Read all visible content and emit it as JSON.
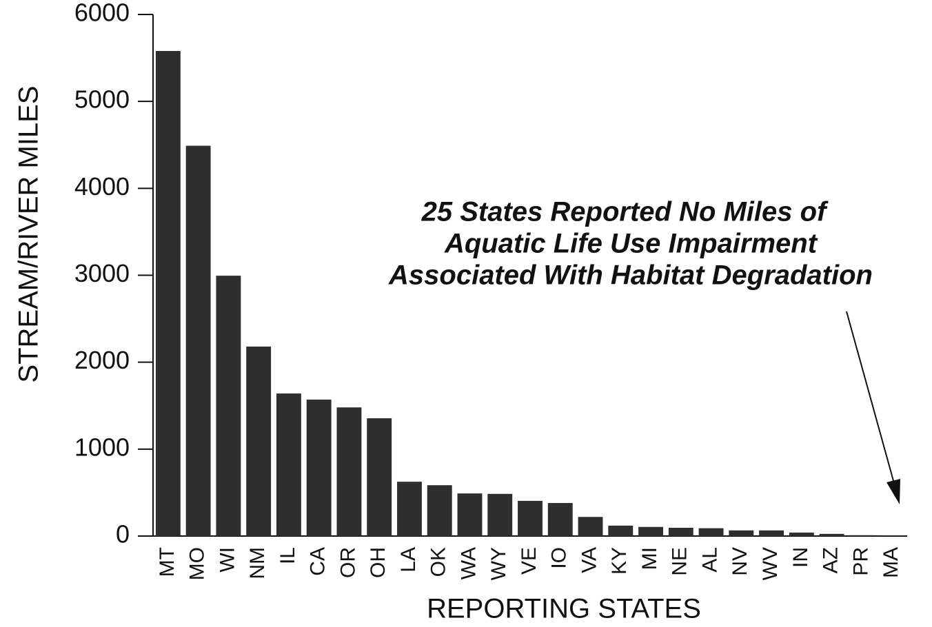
{
  "chart_data": {
    "type": "bar",
    "x_label": "REPORTING STATES",
    "y_label": "STREAM/RIVER MILES",
    "annotation": [
      "25 States Reported No Miles of",
      "Aquatic Life Use Impairment",
      "Associated With Habitat Degradation"
    ],
    "categories": [
      "MT",
      "MO",
      "WI",
      "NM",
      "IL",
      "CA",
      "OR",
      "OH",
      "LA",
      "OK",
      "WA",
      "WY",
      "VE",
      "IO",
      "VA",
      "KY",
      "MI",
      "NE",
      "AL",
      "NV",
      "WV",
      "IN",
      "AZ",
      "PR",
      "MA"
    ],
    "values": [
      5580,
      4490,
      2995,
      2180,
      1640,
      1570,
      1480,
      1355,
      625,
      585,
      490,
      485,
      405,
      380,
      220,
      120,
      105,
      95,
      90,
      65,
      65,
      40,
      25,
      10,
      5
    ],
    "color": "#2e2e2e",
    "ylim": [
      0,
      6000
    ],
    "yticks": [
      0,
      1000,
      2000,
      3000,
      4000,
      5000,
      6000
    ],
    "grid": false
  }
}
